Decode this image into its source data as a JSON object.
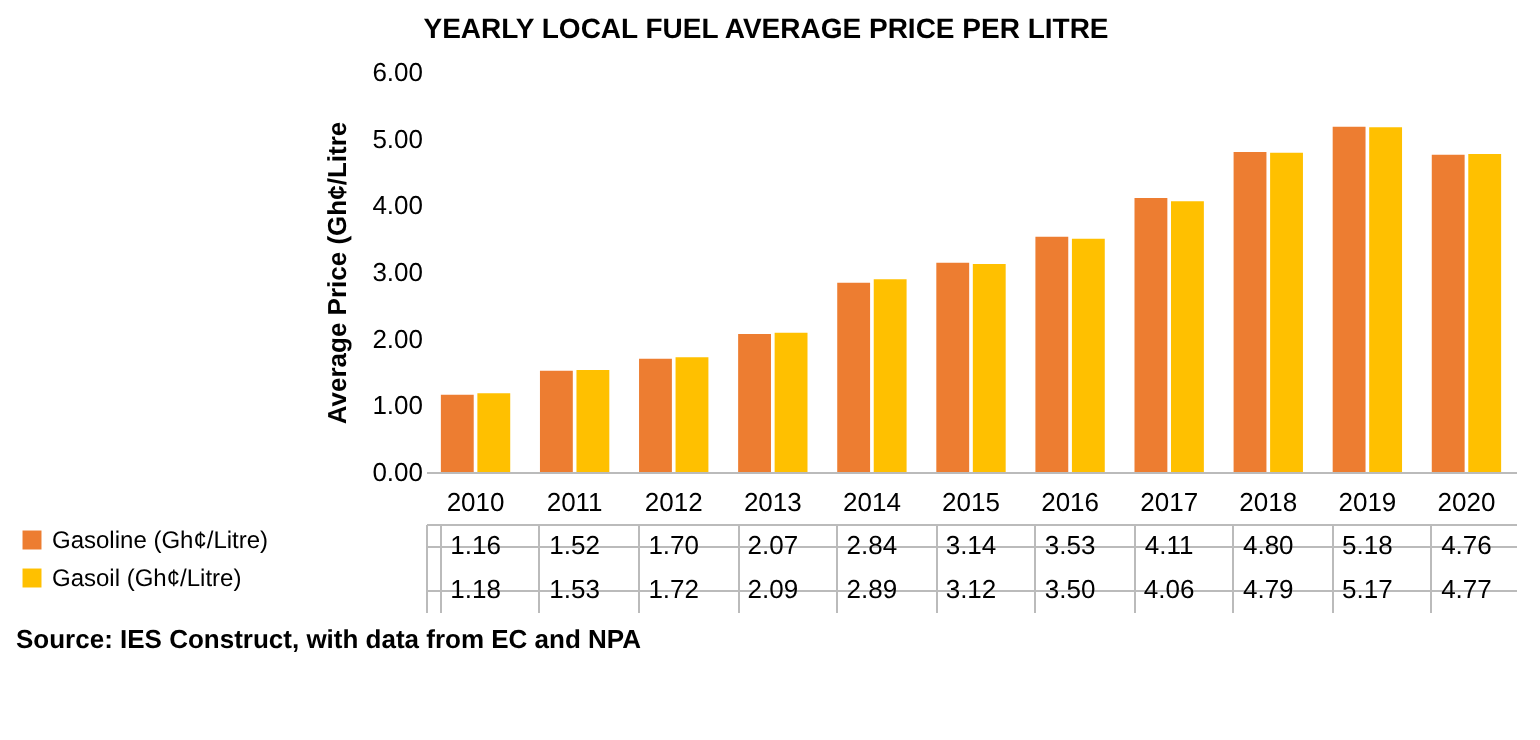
{
  "chart_data": {
    "type": "bar",
    "title": "YEARLY LOCAL FUEL AVERAGE PRICE PER LITRE",
    "ylabel": "Average Price (Gh¢/Litre",
    "categories": [
      "2010",
      "2011",
      "2012",
      "2013",
      "2014",
      "2015",
      "2016",
      "2017",
      "2018",
      "2019",
      "2020"
    ],
    "series": [
      {
        "name": "Gasoline (Gh¢/Litre)",
        "color": "#ed7d31",
        "values": [
          1.16,
          1.52,
          1.7,
          2.07,
          2.84,
          3.14,
          3.53,
          4.11,
          4.8,
          5.18,
          4.76
        ],
        "value_labels": [
          "1.16",
          "1.52",
          "1.70",
          "2.07",
          "2.84",
          "3.14",
          "3.53",
          "4.11",
          "4.80",
          "5.18",
          "4.76"
        ]
      },
      {
        "name": "Gasoil (Gh¢/Litre)",
        "color": "#ffc000",
        "values": [
          1.18,
          1.53,
          1.72,
          2.09,
          2.89,
          3.12,
          3.5,
          4.06,
          4.79,
          5.17,
          4.77
        ],
        "value_labels": [
          "1.18",
          "1.53",
          "1.72",
          "2.09",
          "2.89",
          "3.12",
          "3.50",
          "4.06",
          "4.79",
          "5.17",
          "4.77"
        ]
      }
    ],
    "ylim": [
      0,
      6
    ],
    "yticks": [
      {
        "value": 0,
        "label": "0.00"
      },
      {
        "value": 1,
        "label": "1.00"
      },
      {
        "value": 2,
        "label": "2.00"
      },
      {
        "value": 3,
        "label": "3.00"
      },
      {
        "value": 4,
        "label": "4.00"
      },
      {
        "value": 5,
        "label": "5.00"
      },
      {
        "value": 6,
        "label": "6.00"
      }
    ],
    "legend": "bottom left",
    "annotations": [
      "Source: IES Construct, with data from EC and NPA"
    ]
  }
}
